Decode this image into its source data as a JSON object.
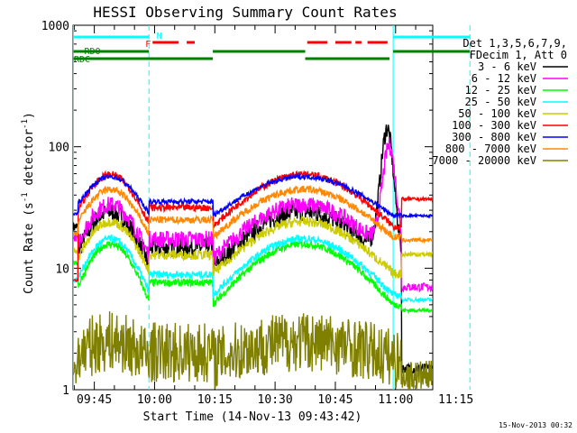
{
  "chart_data": {
    "type": "line",
    "title": "HESSI Observing Summary Count Rates",
    "xlabel": "Start Time (14-Nov-13 09:43:42)",
    "ylabel_main": "Count Rate (s",
    "ylabel_sup1": "-1",
    "ylabel_mid": " detector",
    "ylabel_sup2": "-1",
    "ylabel_end": ")",
    "footer": "15-Nov-2013 00:32",
    "y_scale": "log",
    "xlim_minutes": [
      9.7,
      99.25
    ],
    "ylim": [
      1,
      1000
    ],
    "x_ticks": [
      {
        "min": 15,
        "label": "09:45"
      },
      {
        "min": 30,
        "label": "10:00"
      },
      {
        "min": 45,
        "label": "10:15"
      },
      {
        "min": 60,
        "label": "10:30"
      },
      {
        "min": 75,
        "label": "10:45"
      },
      {
        "min": 90,
        "label": "11:00"
      },
      {
        "min": 105,
        "label": "11:15"
      }
    ],
    "y_ticks": [
      {
        "value": 1,
        "label": "1"
      },
      {
        "value": 10,
        "label": "10"
      },
      {
        "value": 100,
        "label": "100"
      },
      {
        "value": 1000,
        "label": "1000"
      }
    ],
    "legend_header": [
      "Det 1,3,5,6,7,9,",
      "FDecim 1, Att 0"
    ],
    "legend_position": "right",
    "series": [
      {
        "name": "3 - 6 keV",
        "color": "#000000"
      },
      {
        "name": "6 - 12 keV",
        "color": "#ff00ff"
      },
      {
        "name": "12 - 25 keV",
        "color": "#00ff00"
      },
      {
        "name": "25 - 50 keV",
        "color": "#00ffff"
      },
      {
        "name": "50 - 100 keV",
        "color": "#cccc00"
      },
      {
        "name": "100 - 300 keV",
        "color": "#ff0000"
      },
      {
        "name": "300 - 800 keV",
        "color": "#0000ff"
      },
      {
        "name": "800 - 7000 keV",
        "color": "#ff8800"
      },
      {
        "name": "7000 - 20000 keV",
        "color": "#808000"
      }
    ],
    "night_boundaries_minutes": [
      9.8,
      28.6,
      89.4,
      108.5
    ],
    "flags": [
      {
        "label": "N",
        "color": "#00ffff",
        "segments": [
          [
            9.8,
            28.6
          ],
          [
            89.4,
            108.5
          ]
        ]
      },
      {
        "label": "F",
        "color": "#ff0000",
        "segments": [
          [
            29.5,
            36
          ],
          [
            38,
            40
          ],
          [
            68,
            73
          ],
          [
            75,
            79
          ],
          [
            80,
            81.5
          ],
          [
            83,
            88
          ]
        ]
      },
      {
        "label": "RDO",
        "color": "#008000",
        "segments": [
          [
            9.8,
            28.6
          ],
          [
            44.5,
            67.5
          ],
          [
            89.4,
            108.5
          ]
        ]
      },
      {
        "label": "RDC",
        "color": "#008000",
        "segments": [
          [
            9.8,
            44.5
          ],
          [
            67.5,
            88.5
          ]
        ]
      }
    ]
  }
}
